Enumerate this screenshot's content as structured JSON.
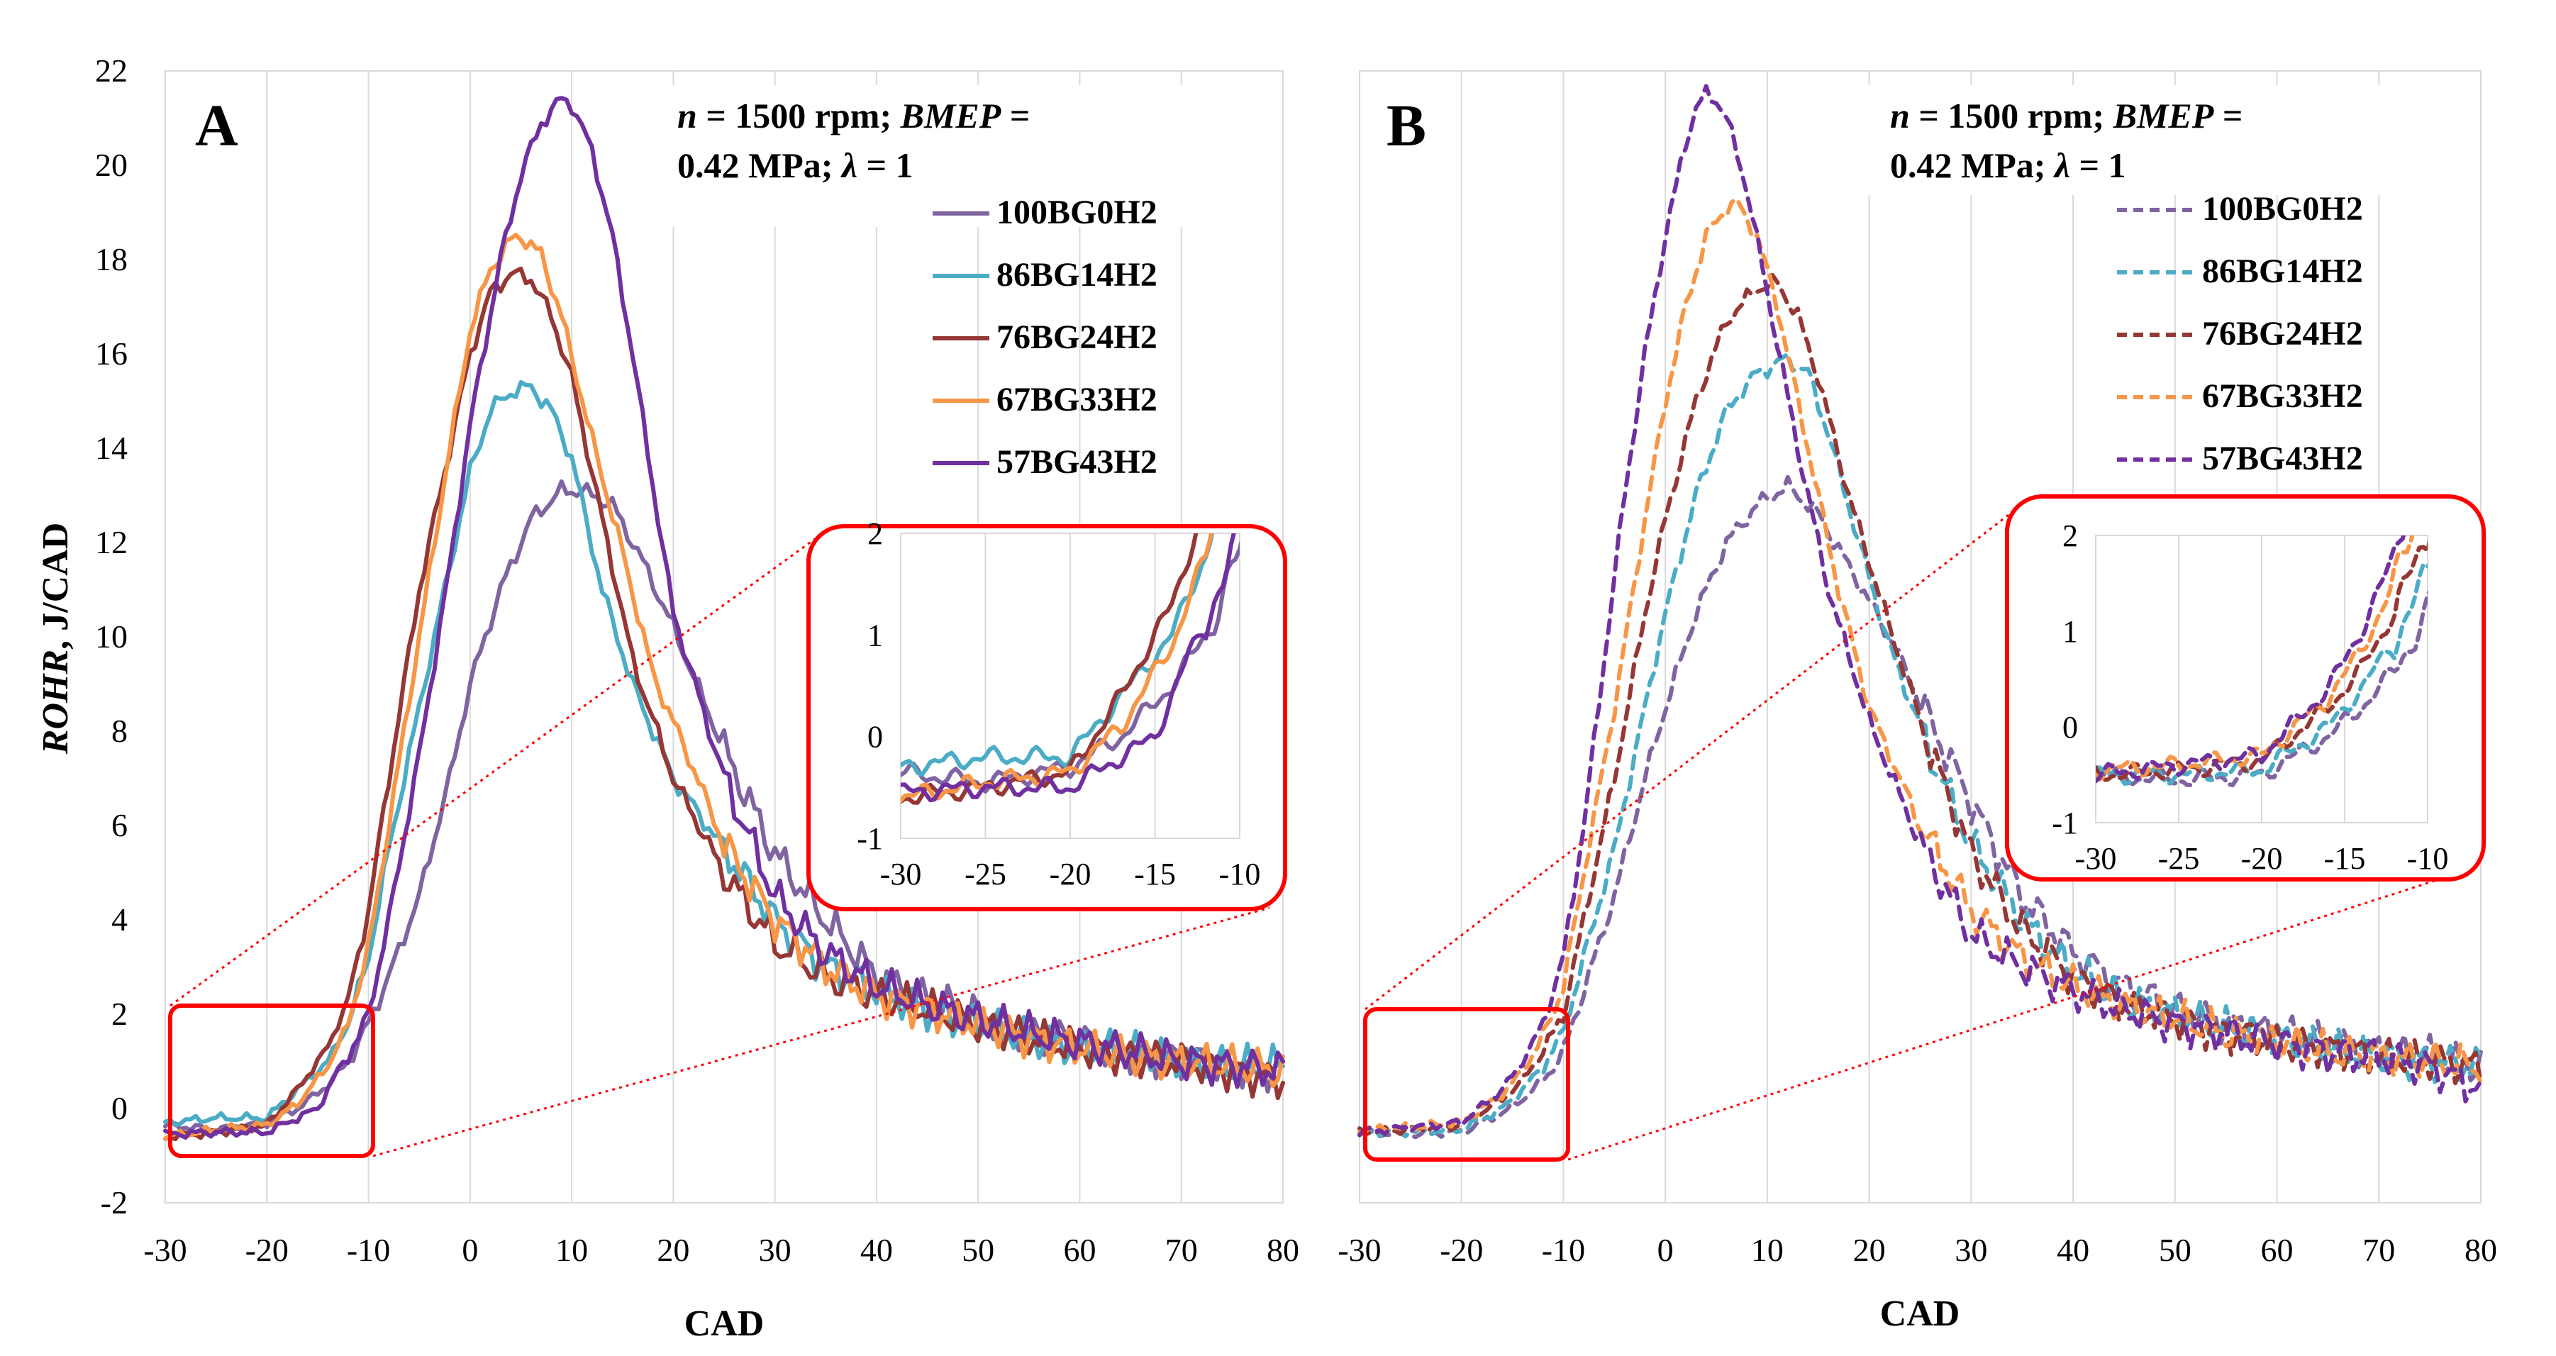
{
  "chart_data": [
    {
      "panel": "A",
      "type": "line",
      "line_style": "solid",
      "title": "",
      "annotation": [
        "n = 1500 rpm; BMEP =",
        "0.42 MPa; λ = 1"
      ],
      "xlabel": "CAD",
      "ylabel": "ROHR, J/CAD",
      "xlim": [
        -30,
        80
      ],
      "ylim": [
        -2,
        22
      ],
      "xticks": [
        "-30",
        "-20",
        "-10",
        "0",
        "10",
        "20",
        "30",
        "40",
        "50",
        "60",
        "70",
        "80"
      ],
      "yticks": [
        "-2",
        "0",
        "2",
        "4",
        "6",
        "8",
        "10",
        "12",
        "14",
        "16",
        "18",
        "20",
        "22"
      ],
      "grid": "vertical",
      "legend": "top-right",
      "zoom_box": {
        "x": [
          -30,
          -10
        ],
        "y": [
          -1,
          2
        ]
      },
      "inset": {
        "xlim": [
          -30,
          -10
        ],
        "ylim": [
          -1,
          2
        ],
        "xticks": [
          "-30",
          "-25",
          "-20",
          "-15",
          "-10"
        ],
        "yticks": [
          "-1",
          "0",
          "1",
          "2"
        ]
      },
      "series": [
        {
          "name": "100BG0H2",
          "color": "#8064a2",
          "x": [
            -30,
            -25,
            -20,
            -17,
            -14,
            -12,
            -10,
            -8,
            -5,
            -2,
            0,
            3,
            6,
            9,
            11,
            14,
            17,
            20,
            25,
            30,
            35,
            40,
            45,
            50,
            55,
            60,
            65,
            70,
            75,
            80
          ],
          "y": [
            -0.35,
            -0.45,
            -0.3,
            0,
            0.5,
            1,
            1.8,
            2.8,
            4.5,
            7,
            9,
            11,
            12.5,
            13.1,
            13.1,
            12.8,
            11.6,
            10.2,
            7.6,
            5.4,
            4,
            2.8,
            2.3,
            2,
            1.6,
            1.4,
            1.2,
            1,
            0.9,
            0.8
          ]
        },
        {
          "name": "86BG14H2",
          "color": "#4bacc6",
          "x": [
            -30,
            -25,
            -20,
            -17,
            -14,
            -12,
            -10,
            -8,
            -5,
            -2,
            0,
            2,
            4,
            6,
            8,
            10,
            13,
            16,
            20,
            25,
            30,
            35,
            40,
            45,
            50,
            55,
            60,
            65,
            70,
            75,
            80
          ],
          "y": [
            -0.3,
            -0.2,
            -0.2,
            0.4,
            1,
            1.8,
            3.2,
            5.5,
            8.5,
            11.5,
            13.5,
            14.8,
            15.2,
            15.3,
            14.8,
            13.8,
            11,
            9,
            7,
            5.5,
            4,
            3,
            2.5,
            2.1,
            1.8,
            1.5,
            1.3,
            1.2,
            1,
            0.9,
            0.9
          ]
        },
        {
          "name": "76BG24H2",
          "color": "#953735",
          "x": [
            -30,
            -25,
            -20,
            -17,
            -14,
            -12,
            -10,
            -8,
            -5,
            -2,
            0,
            2,
            4,
            6,
            8,
            10,
            13,
            16,
            20,
            25,
            30,
            35,
            40,
            45,
            50,
            55,
            60,
            65,
            70,
            75,
            80
          ],
          "y": [
            -0.6,
            -0.5,
            -0.35,
            0.4,
            1.3,
            2.3,
            4.2,
            7,
            11,
            14,
            16,
            17.3,
            17.7,
            17.6,
            16.8,
            15.5,
            12.5,
            9.5,
            7,
            5,
            3.5,
            2.8,
            2.4,
            2.1,
            1.8,
            1.5,
            1.3,
            1.1,
            1,
            0.8,
            0.6
          ]
        },
        {
          "name": "67BG33H2",
          "color": "#f79646",
          "x": [
            -30,
            -25,
            -20,
            -17,
            -14,
            -12,
            -10,
            -8,
            -5,
            -2,
            0,
            2,
            4,
            5,
            7,
            9,
            12,
            15,
            18,
            22,
            25,
            30,
            35,
            40,
            45,
            50,
            55,
            60,
            65,
            70,
            75,
            80
          ],
          "y": [
            -0.6,
            -0.45,
            -0.35,
            0.1,
            0.9,
            1.8,
            3.4,
            6,
            10,
            14,
            16.5,
            17.8,
            18.4,
            18.5,
            18.1,
            16.8,
            14.2,
            11.8,
            9.2,
            7.2,
            5.6,
            4,
            3,
            2.4,
            2.1,
            1.8,
            1.5,
            1.3,
            1.1,
            1,
            0.9,
            0.8
          ]
        },
        {
          "name": "57BG43H2",
          "color": "#7030a0",
          "x": [
            -30,
            -25,
            -20,
            -17,
            -15,
            -13,
            -11,
            -10,
            -8,
            -5,
            -2,
            0,
            3,
            5,
            7,
            9,
            10,
            12,
            14,
            16,
            18,
            20,
            25,
            30,
            35,
            40,
            45,
            50,
            55,
            60,
            65,
            70,
            75,
            80
          ],
          "y": [
            -0.55,
            -0.5,
            -0.5,
            -0.2,
            0,
            0.8,
            1.5,
            2,
            4,
            7.5,
            11.5,
            14.5,
            18,
            19.8,
            20.9,
            21.4,
            21.3,
            20.3,
            18.5,
            16,
            13.2,
            10.5,
            7,
            4.5,
            3.3,
            2.6,
            2.2,
            1.9,
            1.6,
            1.4,
            1.2,
            1,
            0.9,
            0.8
          ]
        }
      ]
    },
    {
      "panel": "B",
      "type": "line",
      "line_style": "dashed",
      "title": "",
      "annotation": [
        "n = 1500 rpm; BMEP =",
        "0.42 MPa; λ = 1"
      ],
      "xlabel": "CAD",
      "ylabel": "",
      "xlim": [
        -30,
        80
      ],
      "ylim": [
        -2,
        22
      ],
      "xticks": [
        "-30",
        "-20",
        "-10",
        "0",
        "10",
        "20",
        "30",
        "40",
        "50",
        "60",
        "70",
        "80"
      ],
      "yticks": [],
      "grid": "vertical",
      "legend": "top-right",
      "zoom_box": {
        "x": [
          -30,
          -10
        ],
        "y": [
          -1,
          2
        ]
      },
      "inset": {
        "xlim": [
          -30,
          -10
        ],
        "ylim": [
          -1,
          2
        ],
        "xticks": [
          "-30",
          "-25",
          "-20",
          "-15",
          "-10"
        ],
        "yticks": [
          "-1",
          "0",
          "1",
          "2"
        ]
      },
      "series": [
        {
          "name": "100BG0H2",
          "color": "#8064a2",
          "x": [
            -30,
            -25,
            -20,
            -16,
            -14,
            -12,
            -10,
            -8,
            -5,
            -2,
            0,
            3,
            6,
            9,
            12,
            15,
            18,
            22,
            26,
            30,
            35,
            40,
            45,
            50,
            55,
            60,
            65,
            70,
            75,
            80
          ],
          "y": [
            -0.5,
            -0.55,
            -0.5,
            -0.1,
            0.2,
            0.6,
            1.2,
            2.5,
            4.5,
            7,
            8.5,
            10.5,
            12,
            12.8,
            13.2,
            12.6,
            11.5,
            10,
            8.2,
            6.5,
            4.5,
            3.3,
            2.6,
            2.1,
            1.8,
            1.6,
            1.4,
            1.2,
            1.1,
            0.9
          ]
        },
        {
          "name": "86BG14H2",
          "color": "#4bacc6",
          "x": [
            -30,
            -25,
            -20,
            -16,
            -14,
            -12,
            -10,
            -8,
            -5,
            -2,
            0,
            3,
            6,
            9,
            12,
            14,
            16,
            19,
            22,
            26,
            30,
            35,
            40,
            45,
            50,
            55,
            60,
            65,
            70,
            75,
            80
          ],
          "y": [
            -0.5,
            -0.5,
            -0.45,
            0,
            0.4,
            0.9,
            1.6,
            3.2,
            5.5,
            8.5,
            10.5,
            13,
            14.8,
            15.6,
            15.9,
            15.6,
            14.3,
            12,
            9.8,
            7.5,
            5.6,
            4,
            2.9,
            2.3,
            2,
            1.7,
            1.5,
            1.3,
            1.1,
            1,
            0.9
          ]
        },
        {
          "name": "76BG24H2",
          "color": "#953735",
          "x": [
            -30,
            -25,
            -20,
            -16,
            -14,
            -12,
            -10,
            -8,
            -5,
            -2,
            0,
            3,
            6,
            9,
            11,
            13,
            15,
            18,
            22,
            26,
            30,
            35,
            40,
            45,
            50,
            55,
            60,
            65,
            70,
            75,
            80
          ],
          "y": [
            -0.5,
            -0.45,
            -0.35,
            0.2,
            0.6,
            1.2,
            2,
            4,
            7,
            10.5,
            12.5,
            15,
            16.7,
            17.4,
            17.5,
            16.8,
            15.5,
            13,
            10.2,
            7.6,
            5.4,
            3.8,
            2.8,
            2.2,
            1.9,
            1.6,
            1.4,
            1.3,
            1.1,
            1,
            0.9
          ]
        },
        {
          "name": "67BG33H2",
          "color": "#f79646",
          "x": [
            -30,
            -25,
            -20,
            -16,
            -14,
            -12,
            -10,
            -8,
            -5,
            -2,
            0,
            2,
            4,
            6,
            7,
            9,
            11,
            14,
            17,
            20,
            25,
            30,
            35,
            40,
            45,
            50,
            55,
            60,
            65,
            70,
            75,
            80
          ],
          "y": [
            -0.45,
            -0.4,
            -0.3,
            0.3,
            0.8,
            1.5,
            2.6,
            5,
            8.5,
            12.5,
            15,
            17,
            18.5,
            19.1,
            19.2,
            18.5,
            17,
            14,
            11,
            8.5,
            6,
            4.2,
            3.2,
            2.6,
            2.2,
            1.9,
            1.6,
            1.4,
            1.2,
            1.1,
            1,
            0.9
          ]
        },
        {
          "name": "57BG43H2",
          "color": "#7030a0",
          "x": [
            -30,
            -25,
            -20,
            -16,
            -14,
            -12,
            -10,
            -8,
            -6,
            -4,
            -2,
            0,
            2,
            3,
            4,
            5,
            6,
            8,
            10,
            13,
            16,
            20,
            25,
            30,
            35,
            40,
            45,
            50,
            55,
            60,
            65,
            70,
            75,
            80
          ],
          "y": [
            -0.5,
            -0.4,
            -0.3,
            0.4,
            1,
            1.8,
            3.2,
            6,
            9.5,
            13,
            16,
            18.5,
            20.5,
            21.2,
            21.5,
            21.4,
            21,
            19.5,
            17.3,
            14,
            11,
            8.2,
            5.6,
            3.7,
            3,
            2.5,
            2.1,
            1.8,
            1.6,
            1.4,
            1.2,
            1.1,
            0.9,
            0.4
          ]
        }
      ]
    }
  ]
}
